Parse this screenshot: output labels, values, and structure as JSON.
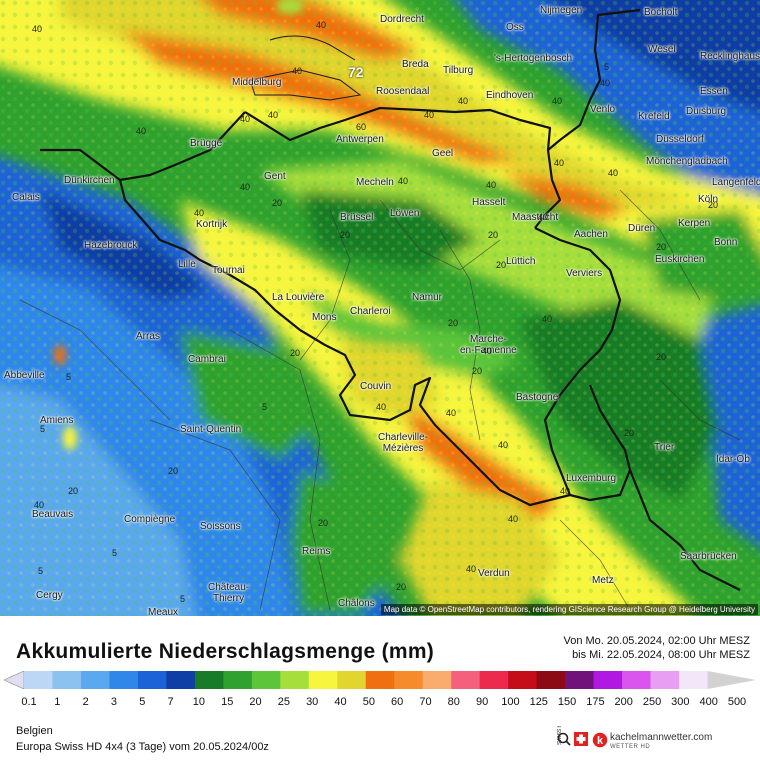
{
  "map": {
    "max_value_label": "72",
    "attribution": "Map data © OpenStreetMap contributors, rendering GIScience Research Group @ Heidelberg University",
    "cities": [
      {
        "name": "Dordrecht"
      },
      {
        "name": "Nijmegen"
      },
      {
        "name": "Bocholt"
      },
      {
        "name": "Oss"
      },
      {
        "name": "Breda"
      },
      {
        "name": "Tilburg"
      },
      {
        "name": "'s-Hertogenbosch"
      },
      {
        "name": "Wesel"
      },
      {
        "name": "Recklinghausen"
      },
      {
        "name": "Middelburg"
      },
      {
        "name": "Roosendaal"
      },
      {
        "name": "Eindhoven"
      },
      {
        "name": "Essen"
      },
      {
        "name": "Venlo"
      },
      {
        "name": "Duisburg"
      },
      {
        "name": "Krefeld"
      },
      {
        "name": "Antwerpen"
      },
      {
        "name": "Brügge"
      },
      {
        "name": "Düsseldorf"
      },
      {
        "name": "Geel"
      },
      {
        "name": "Mönchengladbach"
      },
      {
        "name": "Gent"
      },
      {
        "name": "Mecheln"
      },
      {
        "name": "Dünkirchen"
      },
      {
        "name": "Langenfeld"
      },
      {
        "name": "Hasselt"
      },
      {
        "name": "Calais"
      },
      {
        "name": "Köln"
      },
      {
        "name": "Maastricht"
      },
      {
        "name": "Brüssel"
      },
      {
        "name": "Löwen"
      },
      {
        "name": "Kortrijk"
      },
      {
        "name": "Kerpen"
      },
      {
        "name": "Düren"
      },
      {
        "name": "Aachen"
      },
      {
        "name": "Hazebrouck"
      },
      {
        "name": "Bonn"
      },
      {
        "name": "Lüttich"
      },
      {
        "name": "Euskirchen"
      },
      {
        "name": "Lille"
      },
      {
        "name": "Tournai"
      },
      {
        "name": "Verviers"
      },
      {
        "name": "La Louvière"
      },
      {
        "name": "Namur"
      },
      {
        "name": "Mons"
      },
      {
        "name": "Charleroi"
      },
      {
        "name": "Arras"
      },
      {
        "name": "Marche-\nen-Famenne"
      },
      {
        "name": "Cambrai"
      },
      {
        "name": "Abbeville"
      },
      {
        "name": "Couvin"
      },
      {
        "name": "Bastogne"
      },
      {
        "name": "Amiens"
      },
      {
        "name": "Saint-Quentin"
      },
      {
        "name": "Charleville-\nMézières"
      },
      {
        "name": "Trier"
      },
      {
        "name": "Idar-Ob"
      },
      {
        "name": "Luxemburg"
      },
      {
        "name": "Beauvais"
      },
      {
        "name": "Compiègne"
      },
      {
        "name": "Soissons"
      },
      {
        "name": "Saarbrücken"
      },
      {
        "name": "Reims"
      },
      {
        "name": "Verdun"
      },
      {
        "name": "Château-\nThierry"
      },
      {
        "name": "Metz"
      },
      {
        "name": "Cergy"
      },
      {
        "name": "Meaux"
      },
      {
        "name": "Châlons"
      }
    ],
    "iso_labels": [
      "40",
      "40",
      "40",
      "40",
      "40",
      "40",
      "40",
      "40",
      "40",
      "60",
      "40",
      "40",
      "20",
      "40",
      "40",
      "20",
      "40",
      "20",
      "20",
      "20",
      "40",
      "40",
      "20",
      "20",
      "40",
      "5",
      "40",
      "40",
      "20",
      "5",
      "20",
      "20",
      "40",
      "40",
      "40",
      "40",
      "5",
      "20",
      "40",
      "40",
      "20",
      "5",
      "5",
      "5",
      "20",
      "20",
      "5",
      "40",
      "20"
    ]
  },
  "legend": {
    "title": "Akkumulierte Niederschlagsmenge (mm)",
    "period_line1": "Von Mo. 20.05.2024, 02:00 Uhr MESZ",
    "period_line2": "bis Mi. 22.05.2024, 08:00 Uhr MESZ",
    "ticks": [
      "0.1",
      "1",
      "2",
      "3",
      "5",
      "7",
      "10",
      "15",
      "20",
      "25",
      "30",
      "40",
      "50",
      "60",
      "70",
      "80",
      "90",
      "100",
      "125",
      "150",
      "175",
      "200",
      "250",
      "300",
      "400",
      "500"
    ],
    "colors": [
      "#e0dff0",
      "#bcd6f5",
      "#8cc2f0",
      "#5aa8ee",
      "#2f87ea",
      "#1b63d6",
      "#0f3ea5",
      "#177b28",
      "#2ea12f",
      "#5cc53a",
      "#a6de3c",
      "#f7f53e",
      "#e0d62e",
      "#ef6f11",
      "#f58b2a",
      "#f9ac6e",
      "#f5607c",
      "#eb2a4d",
      "#c50d19",
      "#8c0a14",
      "#71127a",
      "#b01ae0",
      "#da54ee",
      "#e89ff3",
      "#f2e6f8",
      "#d2d2d2"
    ],
    "region": "Belgien",
    "model": "Europa Swiss HD 4x4 (3 Tage) vom 20.05.2024/00z",
    "brand": "kachelmannwetter.com",
    "brand_sub": "WETTER HD",
    "swiss_hd": "SWISS HD"
  }
}
